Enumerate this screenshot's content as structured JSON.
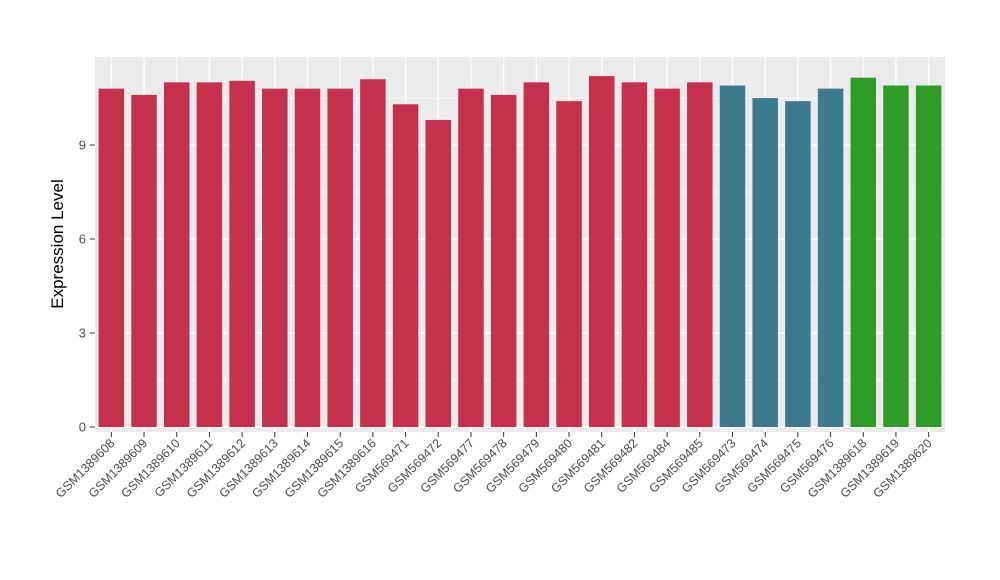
{
  "chart_data": {
    "type": "bar",
    "title": "",
    "xlabel": "",
    "ylabel": "Expression Level",
    "ylim": [
      0,
      11.8
    ],
    "yticks": [
      0,
      3,
      6,
      9
    ],
    "minor_ticks": [
      1.5,
      4.5,
      7.5,
      10.5
    ],
    "grid": true,
    "legend_position": "none",
    "panel_bg": "#EBEBEB",
    "grid_color": "#FFFFFF",
    "axis_text_color": "#4D4D4D",
    "tick_color": "#333333",
    "categories": [
      "GSM1389608",
      "GSM1389609",
      "GSM1389610",
      "GSM1389611",
      "GSM1389612",
      "GSM1389613",
      "GSM1389614",
      "GSM1389615",
      "GSM1389616",
      "GSM569471",
      "GSM569472",
      "GSM569477",
      "GSM569478",
      "GSM569479",
      "GSM569480",
      "GSM569481",
      "GSM569482",
      "GSM569484",
      "GSM569485",
      "GSM569473",
      "GSM569474",
      "GSM569475",
      "GSM569476",
      "GSM1389618",
      "GSM1389619",
      "GSM1389620"
    ],
    "values": [
      10.8,
      10.6,
      11.0,
      11.0,
      11.05,
      10.8,
      10.8,
      10.8,
      11.1,
      10.3,
      9.8,
      10.8,
      10.6,
      11.0,
      10.4,
      11.2,
      11.0,
      10.8,
      11.0,
      10.9,
      10.5,
      10.4,
      10.8,
      11.15,
      10.9,
      10.9
    ],
    "groups": [
      "red",
      "red",
      "red",
      "red",
      "red",
      "red",
      "red",
      "red",
      "red",
      "red",
      "red",
      "red",
      "red",
      "red",
      "red",
      "red",
      "red",
      "red",
      "red",
      "teal",
      "teal",
      "teal",
      "teal",
      "green",
      "green",
      "green"
    ],
    "palette": {
      "red": "#C5304C",
      "teal": "#3C7B8E",
      "green": "#2E9C27"
    }
  }
}
